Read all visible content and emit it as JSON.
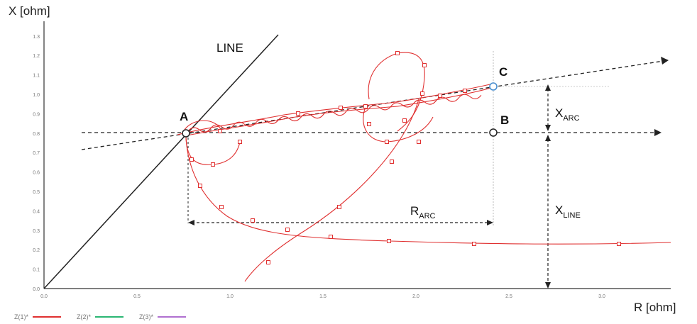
{
  "axes": {
    "x_title": "R [ohm]",
    "y_title": "X [ohm]",
    "x_ticks": [
      "0.0",
      "0.5",
      "1.0",
      "1.5",
      "2.0",
      "2.5",
      "3.0"
    ],
    "y_ticks": [
      "0.0",
      "0.1",
      "0.2",
      "0.3",
      "0.4",
      "0.5",
      "0.6",
      "0.7",
      "0.8",
      "0.9",
      "1.0",
      "1.1",
      "1.2",
      "1.3"
    ]
  },
  "labels": {
    "line": "LINE",
    "point_a": "A",
    "point_b": "B",
    "point_c": "C",
    "r_arc_main": "R",
    "r_arc_sub": "ARC",
    "x_arc_main": "X",
    "x_arc_sub": "ARC",
    "x_line_main": "X",
    "x_line_sub": "LINE"
  },
  "legend": [
    {
      "label": "Z(1)*",
      "color": "#e03030"
    },
    {
      "label": "Z(2)*",
      "color": "#2bb673"
    },
    {
      "label": "Z(3)*",
      "color": "#b070d0"
    }
  ],
  "colors": {
    "trajectory": "#e03030",
    "axis": "#333333",
    "point_c": "#4a8fd0"
  }
}
